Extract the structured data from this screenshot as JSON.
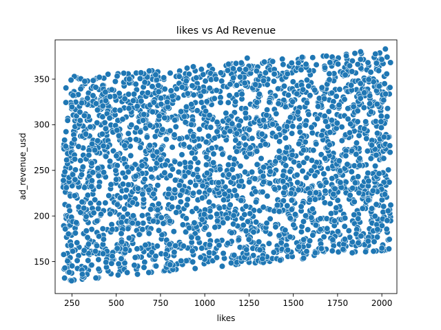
{
  "chart_data": {
    "type": "scatter",
    "title": "likes vs Ad Revenue",
    "xlabel": "likes",
    "ylabel": "ad_revenue_usd",
    "xlim": [
      155,
      2085
    ],
    "ylim": [
      115,
      393
    ],
    "xticks": [
      250,
      500,
      750,
      1000,
      1250,
      1500,
      1750,
      2000
    ],
    "yticks": [
      150,
      200,
      250,
      300,
      350
    ],
    "grid": false,
    "point_color": "#1f77b4",
    "point_edge_color": "#ffffff",
    "point_count": 2600,
    "region": {
      "x_range": [
        200,
        2050
      ],
      "lower_edge": [
        [
          200,
          128
        ],
        [
          2050,
          162
        ]
      ],
      "upper_edge": [
        [
          200,
          352
        ],
        [
          2050,
          382
        ]
      ]
    },
    "points": [
      [
        210,
        143
      ],
      [
        248,
        129
      ],
      [
        320,
        310
      ],
      [
        405,
        352
      ],
      [
        500,
        240
      ],
      [
        640,
        357
      ],
      [
        780,
        158
      ],
      [
        900,
        362
      ],
      [
        1050,
        268
      ],
      [
        1240,
        373
      ],
      [
        1400,
        188
      ],
      [
        1550,
        374
      ],
      [
        1720,
        320
      ],
      [
        1880,
        380
      ],
      [
        2020,
        383
      ],
      [
        2040,
        164
      ],
      [
        2050,
        212
      ],
      [
        2030,
        195
      ]
    ]
  }
}
